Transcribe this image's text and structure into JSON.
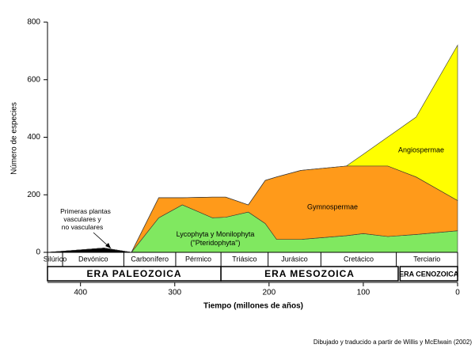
{
  "chart_data": {
    "type": "stacked_area",
    "x_label": "Tiempo (millones de años)",
    "y_label": "Número de especies",
    "x": [
      435,
      375,
      346,
      317,
      292,
      260,
      246,
      222,
      204,
      192,
      166,
      118,
      100,
      74,
      44,
      0
    ],
    "xlim": [
      435,
      0
    ],
    "xticks": [
      400,
      300,
      200,
      100,
      0
    ],
    "ylim": [
      0,
      800
    ],
    "yticks": [
      0,
      200,
      400,
      600,
      800
    ],
    "series": [
      {
        "color": "#000000",
        "values": [
          0,
          15,
          0,
          0,
          0,
          0,
          0,
          0,
          0,
          0,
          0,
          0,
          0,
          0,
          0,
          0
        ]
      },
      {
        "name": "Lycophyta y Monilophyta (\"Pteridophyta\")",
        "color": "#80e860",
        "values": [
          0,
          0,
          0,
          120,
          165,
          120,
          122,
          140,
          100,
          45,
          45,
          58,
          65,
          55,
          62,
          75
        ]
      },
      {
        "name": "Gymnospermae",
        "color": "#ff9a1a",
        "values": [
          0,
          0,
          0,
          70,
          25,
          72,
          70,
          25,
          150,
          217,
          240,
          242,
          235,
          245,
          200,
          105
        ]
      },
      {
        "name": "Angiospermae",
        "color": "#ffff00",
        "values": [
          0,
          0,
          0,
          0,
          0,
          0,
          0,
          0,
          0,
          0,
          0,
          0,
          41,
          101,
          208,
          540
        ]
      }
    ],
    "annotation": "Primeras plantas vasculares y no vasculares",
    "periods": [
      {
        "name": "Silúrico",
        "start": 435,
        "end": 419
      },
      {
        "name": "Devónico",
        "start": 419,
        "end": 354
      },
      {
        "name": "Carbonífero",
        "start": 354,
        "end": 299
      },
      {
        "name": "Pérmico",
        "start": 299,
        "end": 251
      },
      {
        "name": "Triásico",
        "start": 251,
        "end": 201
      },
      {
        "name": "Jurásico",
        "start": 201,
        "end": 145
      },
      {
        "name": "Cretácico",
        "start": 145,
        "end": 65
      },
      {
        "name": "Terciario",
        "start": 65,
        "end": 0
      }
    ],
    "eras": [
      {
        "name": "ERA PALEOZOICA",
        "start": 435,
        "end": 251
      },
      {
        "name": "ERA MESOZOICA",
        "start": 251,
        "end": 63
      },
      {
        "name": "ERA CENOZOICA",
        "start": 61,
        "end": 0
      }
    ],
    "source": "Dibujado y traducido a partir de Willis y McElwain (2002)"
  }
}
